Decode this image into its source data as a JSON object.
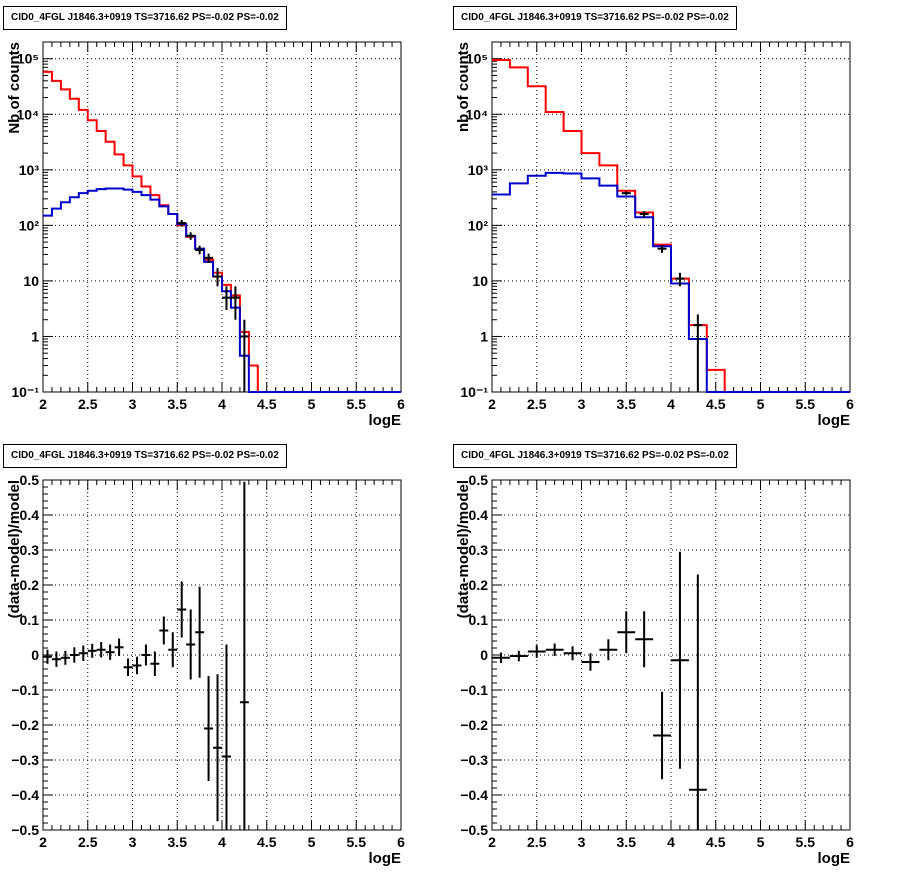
{
  "colors": {
    "model": "#ff0000",
    "component": "#0000cc",
    "data": "#000000"
  },
  "chart_data": [
    {
      "id": "top-left",
      "type": "line",
      "title": "CID0_4FGL J1846.3+0919 TS=3716.62 PS=-0.02 PS=-0.02",
      "xlabel": "logE",
      "ylabel": "Nb of counts",
      "xlim": [
        2,
        6
      ],
      "ylim": [
        0.1,
        200000
      ],
      "ylog": true,
      "grid": true,
      "xticks": [
        2,
        2.5,
        3,
        3.5,
        4,
        4.5,
        5,
        5.5,
        6
      ],
      "xtick_labels": [
        "2",
        "2.5",
        "3",
        "3.5",
        "4",
        "4.5",
        "5",
        "5.5",
        "6"
      ],
      "yticks": [
        0.1,
        1,
        10,
        100,
        1000,
        10000,
        100000
      ],
      "ytick_labels": [
        "10⁻¹",
        "1",
        "10",
        "10²",
        "10³",
        "10⁴",
        "10⁵"
      ],
      "bin_edges": [
        2.0,
        2.1,
        2.2,
        2.3,
        2.4,
        2.5,
        2.6,
        2.7,
        2.8,
        2.9,
        3.0,
        3.1,
        3.2,
        3.3,
        3.4,
        3.5,
        3.6,
        3.7,
        3.8,
        3.9,
        4.0,
        4.1,
        4.2,
        4.3,
        4.4,
        4.5,
        4.6,
        4.7,
        4.8,
        4.9,
        5.0,
        5.1,
        5.2,
        5.3,
        5.4,
        5.5,
        5.6,
        5.7,
        5.8,
        5.9,
        6.0
      ],
      "series": [
        {
          "role": "model",
          "style": "step",
          "values": [
            58000,
            40000,
            28000,
            19000,
            12000,
            7800,
            5000,
            3200,
            1900,
            1200,
            760,
            500,
            350,
            230,
            160,
            100,
            62,
            38,
            24,
            14,
            8.5,
            5.5,
            1.2,
            0.3,
            0.1,
            0.1,
            0.1,
            0.1,
            0.1,
            0.1,
            0.1,
            0.1,
            0.1,
            0.1,
            0.1,
            0.1,
            0.1,
            0.1,
            0.1,
            0.1
          ]
        },
        {
          "role": "component",
          "style": "step",
          "values": [
            150,
            200,
            260,
            320,
            380,
            420,
            450,
            460,
            460,
            440,
            400,
            350,
            290,
            220,
            160,
            105,
            64,
            38,
            22,
            12,
            6.5,
            3.3,
            0.45,
            0.1,
            0.1,
            0.1,
            0.1,
            0.1,
            0.1,
            0.1,
            0.1,
            0.1,
            0.1,
            0.1,
            0.1,
            0.1,
            0.1,
            0.1,
            0.1,
            0.1
          ]
        },
        {
          "role": "data",
          "style": "errorbar",
          "x": [
            3.55,
            3.65,
            3.75,
            3.85,
            3.95,
            4.05,
            4.15,
            4.25
          ],
          "values": [
            110,
            65,
            36,
            26,
            12,
            5,
            5,
            1
          ],
          "lo": [
            95,
            55,
            30,
            21,
            8,
            3,
            2,
            0.1
          ],
          "hi": [
            125,
            75,
            43,
            31,
            17,
            8,
            8,
            2
          ]
        }
      ]
    },
    {
      "id": "top-right",
      "type": "line",
      "title": "CID0_4FGL J1846.3+0919 TS=3716.62 PS=-0.02 PS=-0.02",
      "xlabel": "logE",
      "ylabel": "nb of counts",
      "xlim": [
        2,
        6
      ],
      "ylim": [
        0.1,
        200000
      ],
      "ylog": true,
      "grid": true,
      "xticks": [
        2,
        2.5,
        3,
        3.5,
        4,
        4.5,
        5,
        5.5,
        6
      ],
      "xtick_labels": [
        "2",
        "2.5",
        "3",
        "3.5",
        "4",
        "4.5",
        "5",
        "5.5",
        "6"
      ],
      "yticks": [
        0.1,
        1,
        10,
        100,
        1000,
        10000,
        100000
      ],
      "ytick_labels": [
        "10⁻¹",
        "1",
        "10",
        "10²",
        "10³",
        "10⁴",
        "10⁵"
      ],
      "bin_edges": [
        2.0,
        2.2,
        2.4,
        2.6,
        2.8,
        3.0,
        3.2,
        3.4,
        3.6,
        3.8,
        4.0,
        4.2,
        4.4,
        4.6,
        4.8,
        5.0,
        5.2,
        5.4,
        5.6,
        5.8,
        6.0
      ],
      "series": [
        {
          "role": "model",
          "style": "step",
          "values": [
            95000,
            70000,
            32000,
            11000,
            5000,
            2000,
            1200,
            420,
            170,
            45,
            11,
            1.6,
            0.25,
            0.1,
            0.1,
            0.1,
            0.1,
            0.1,
            0.1,
            0.1
          ]
        },
        {
          "role": "component",
          "style": "step",
          "values": [
            360,
            570,
            780,
            880,
            860,
            700,
            520,
            330,
            140,
            42,
            9,
            0.9,
            0.1,
            0.1,
            0.1,
            0.1,
            0.1,
            0.1,
            0.1,
            0.1
          ]
        },
        {
          "role": "data",
          "style": "errorbar",
          "x": [
            3.5,
            3.7,
            3.9,
            4.1,
            4.3
          ],
          "values": [
            380,
            160,
            38,
            11,
            1.6
          ],
          "lo": [
            350,
            140,
            32,
            8,
            0.1
          ],
          "hi": [
            410,
            180,
            44,
            14,
            2.5
          ]
        }
      ]
    },
    {
      "id": "bottom-left",
      "type": "scatter",
      "title": "CID0_4FGL J1846.3+0919 TS=3716.62 PS=-0.02 PS=-0.02",
      "xlabel": "logE",
      "ylabel": "(data-model)/model",
      "xlim": [
        2,
        6
      ],
      "ylim": [
        -0.5,
        0.5
      ],
      "ylog": false,
      "grid": true,
      "xticks": [
        2,
        2.5,
        3,
        3.5,
        4,
        4.5,
        5,
        5.5,
        6
      ],
      "xtick_labels": [
        "2",
        "2.5",
        "3",
        "3.5",
        "4",
        "4.5",
        "5",
        "5.5",
        "6"
      ],
      "yticks": [
        -0.5,
        -0.4,
        -0.3,
        -0.2,
        -0.1,
        0,
        0.1,
        0.2,
        0.3,
        0.4,
        0.5
      ],
      "ytick_labels": [
        "−0.5",
        "−0.4",
        "−0.3",
        "−0.2",
        "−0.1",
        "0",
        "0.1",
        "0.2",
        "0.3",
        "0.4",
        "0.5"
      ],
      "series": [
        {
          "role": "data",
          "style": "errorbar",
          "xerr": 0.05,
          "x": [
            2.05,
            2.15,
            2.25,
            2.35,
            2.45,
            2.55,
            2.65,
            2.75,
            2.85,
            2.95,
            3.05,
            3.15,
            3.25,
            3.35,
            3.45,
            3.55,
            3.65,
            3.75,
            3.85,
            3.95,
            4.05,
            4.25
          ],
          "values": [
            -0.005,
            -0.012,
            -0.008,
            0.0,
            0.005,
            0.012,
            0.015,
            0.008,
            0.022,
            -0.035,
            -0.03,
            0.0,
            -0.025,
            0.07,
            0.015,
            0.13,
            0.03,
            0.065,
            -0.21,
            -0.265,
            -0.29,
            -0.135
          ],
          "yerr": [
            0.02,
            0.022,
            0.02,
            0.022,
            0.022,
            0.02,
            0.022,
            0.022,
            0.025,
            0.025,
            0.025,
            0.03,
            0.035,
            0.04,
            0.05,
            0.08,
            0.1,
            0.13,
            0.15,
            0.21,
            0.32,
            0.63
          ]
        }
      ]
    },
    {
      "id": "bottom-right",
      "type": "scatter",
      "title": "CID0_4FGL J1846.3+0919 TS=3716.62 PS=-0.02 PS=-0.02",
      "xlabel": "logE",
      "ylabel": "(data-model)/model",
      "xlim": [
        2,
        6
      ],
      "ylim": [
        -0.5,
        0.5
      ],
      "ylog": false,
      "grid": true,
      "xticks": [
        2,
        2.5,
        3,
        3.5,
        4,
        4.5,
        5,
        5.5,
        6
      ],
      "xtick_labels": [
        "2",
        "2.5",
        "3",
        "3.5",
        "4",
        "4.5",
        "5",
        "5.5",
        "6"
      ],
      "yticks": [
        -0.5,
        -0.4,
        -0.3,
        -0.2,
        -0.1,
        0,
        0.1,
        0.2,
        0.3,
        0.4,
        0.5
      ],
      "ytick_labels": [
        "−0.5",
        "−0.4",
        "−0.3",
        "−0.2",
        "−0.1",
        "0",
        "0.1",
        "0.2",
        "0.3",
        "0.4",
        "0.5"
      ],
      "series": [
        {
          "role": "data",
          "style": "errorbar",
          "xerr": 0.1,
          "x": [
            2.1,
            2.3,
            2.5,
            2.7,
            2.9,
            3.1,
            3.3,
            3.5,
            3.7,
            3.9,
            4.1,
            4.3
          ],
          "values": [
            -0.008,
            -0.003,
            0.01,
            0.015,
            0.005,
            -0.02,
            0.015,
            0.065,
            0.045,
            -0.23,
            -0.015,
            -0.385
          ],
          "yerr": [
            0.015,
            0.015,
            0.018,
            0.018,
            0.02,
            0.025,
            0.03,
            0.06,
            0.08,
            0.125,
            0.31,
            0.615
          ]
        }
      ]
    }
  ]
}
